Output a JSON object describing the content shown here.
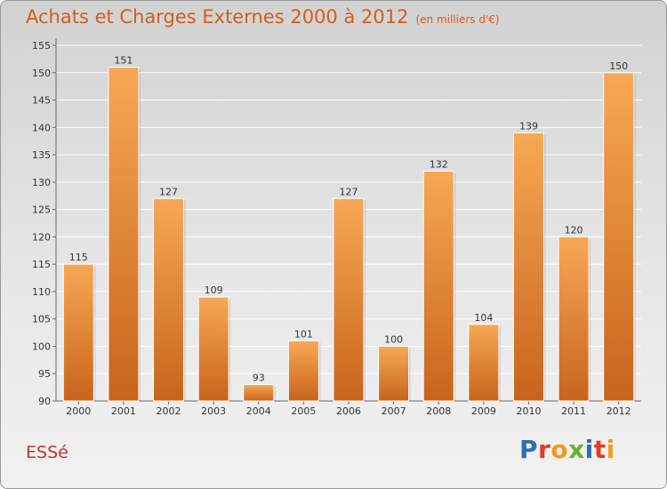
{
  "title": "Achats et Charges Externes 2000 à 2012",
  "subtitle": "(en milliers d'€)",
  "commune": "ESSé",
  "logo": {
    "letters": [
      "P",
      "r",
      "o",
      "x",
      "i",
      "t",
      "i"
    ],
    "colors": [
      "#2d6fb5",
      "#e23b23",
      "#f29a1d",
      "#6bb131",
      "#2d6fb5",
      "#e23b23",
      "#f29a1d"
    ]
  },
  "colors": {
    "bar_light": "#f7a855",
    "bar_dark": "#c8641c",
    "title": "#d35d1a",
    "commune": "#c9302c"
  },
  "chart_data": {
    "type": "bar",
    "categories": [
      "2000",
      "2001",
      "2002",
      "2003",
      "2004",
      "2005",
      "2006",
      "2007",
      "2008",
      "2009",
      "2010",
      "2011",
      "2012"
    ],
    "values": [
      115,
      151,
      127,
      109,
      93,
      101,
      127,
      100,
      132,
      104,
      139,
      120,
      150
    ],
    "ylim": [
      90,
      155
    ],
    "yticks": [
      90,
      95,
      100,
      105,
      110,
      115,
      120,
      125,
      130,
      135,
      140,
      145,
      150,
      155
    ],
    "grid": true,
    "legend": "none"
  }
}
